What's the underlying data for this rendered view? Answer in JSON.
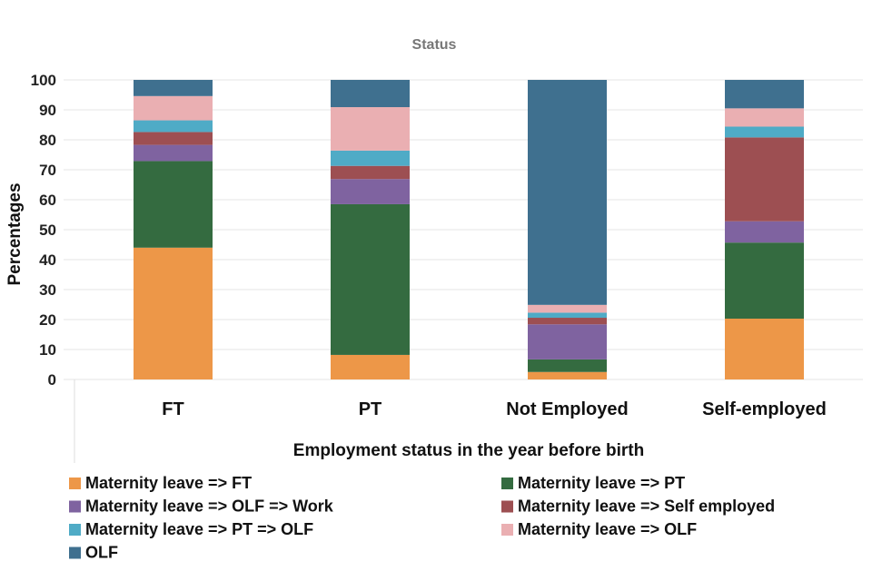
{
  "chart_data": {
    "type": "bar",
    "stacked": true,
    "title": "Status",
    "xlabel": "Employment status in the year before birth",
    "ylabel": "Percentages",
    "ylim": [
      0,
      100
    ],
    "yticks": [
      0,
      10,
      20,
      30,
      40,
      50,
      60,
      70,
      80,
      90,
      100
    ],
    "grid": true,
    "legend_position": "bottom",
    "categories": [
      "FT",
      "PT",
      "Not Employed",
      "Self-employed"
    ],
    "series": [
      {
        "name": "Maternity leave => FT",
        "color": "#ed9748",
        "values": [
          44.0,
          8.2,
          2.5,
          20.3
        ]
      },
      {
        "name": "Maternity leave => PT",
        "color": "#346b40",
        "values": [
          28.9,
          50.3,
          4.2,
          25.4
        ]
      },
      {
        "name": "Maternity leave => OLF => Work",
        "color": "#7f63a0",
        "values": [
          5.4,
          8.4,
          11.7,
          7.1
        ]
      },
      {
        "name": "Maternity leave => Self employed",
        "color": "#9d4f52",
        "values": [
          4.3,
          4.4,
          2.2,
          28.0
        ]
      },
      {
        "name": "Maternity leave => PT => OLF",
        "color": "#4fabc6",
        "values": [
          3.9,
          5.1,
          1.7,
          3.6
        ]
      },
      {
        "name": "Maternity leave => OLF",
        "color": "#eaafb2",
        "values": [
          8.1,
          14.5,
          2.6,
          6.1
        ]
      },
      {
        "name": "OLF",
        "color": "#3f708f",
        "values": [
          5.4,
          9.1,
          75.1,
          9.5
        ]
      }
    ]
  }
}
